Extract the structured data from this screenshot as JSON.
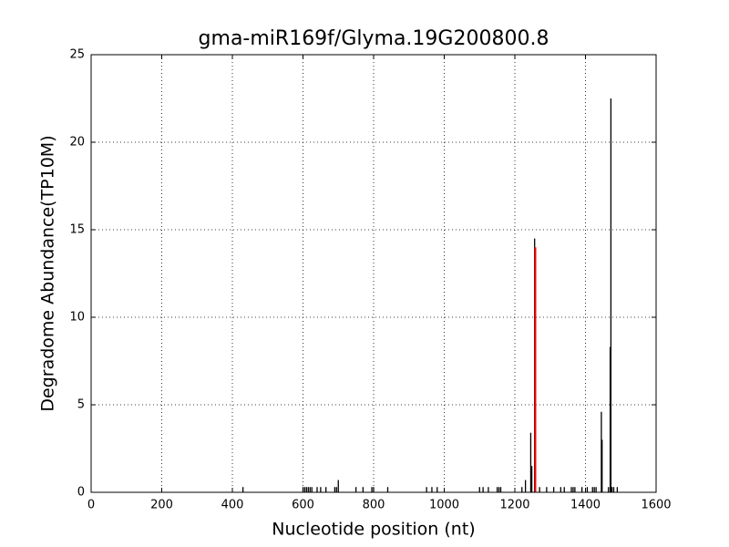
{
  "chart_data": {
    "type": "spike",
    "title": "gma-miR169f/Glyma.19G200800.8",
    "x_label": "Nucleotide position (nt)",
    "y_label": "Degradome Abundance(TP10M)",
    "xlim": [
      0,
      1600
    ],
    "ylim": [
      0,
      25
    ],
    "xticks": [
      0,
      200,
      400,
      600,
      800,
      1000,
      1200,
      1400,
      1600
    ],
    "yticks": [
      0,
      5,
      10,
      15,
      20,
      25
    ],
    "grid": true,
    "series": [
      {
        "color": "#000000",
        "x": [
          430,
          600,
          605,
          610,
          615,
          620,
          625,
          640,
          650,
          665,
          690,
          695,
          700,
          750,
          770,
          795,
          800,
          840,
          950,
          965,
          980,
          1100,
          1110,
          1125,
          1150,
          1155,
          1160,
          1220,
          1230,
          1245,
          1248,
          1256,
          1270,
          1290,
          1310,
          1330,
          1340,
          1360,
          1365,
          1370,
          1390,
          1405,
          1420,
          1425,
          1430,
          1445,
          1447,
          1465,
          1470,
          1472,
          1475,
          1480,
          1490
        ],
        "values": [
          0.3,
          0.3,
          0.3,
          0.3,
          0.3,
          0.3,
          0.3,
          0.3,
          0.3,
          0.3,
          0.3,
          0.3,
          0.7,
          0.3,
          0.3,
          0.3,
          0.3,
          0.3,
          0.3,
          0.3,
          0.3,
          0.3,
          0.3,
          0.3,
          0.3,
          0.3,
          0.3,
          0.3,
          0.7,
          3.4,
          1.5,
          14.5,
          0.3,
          0.3,
          0.3,
          0.3,
          0.3,
          0.3,
          0.3,
          0.3,
          0.3,
          0.3,
          0.3,
          0.3,
          0.3,
          4.6,
          3.0,
          0.3,
          8.3,
          22.5,
          0.3,
          0.3,
          0.3
        ]
      },
      {
        "color": "#ff0000",
        "x": [
          1258
        ],
        "values": [
          14
        ]
      }
    ]
  }
}
